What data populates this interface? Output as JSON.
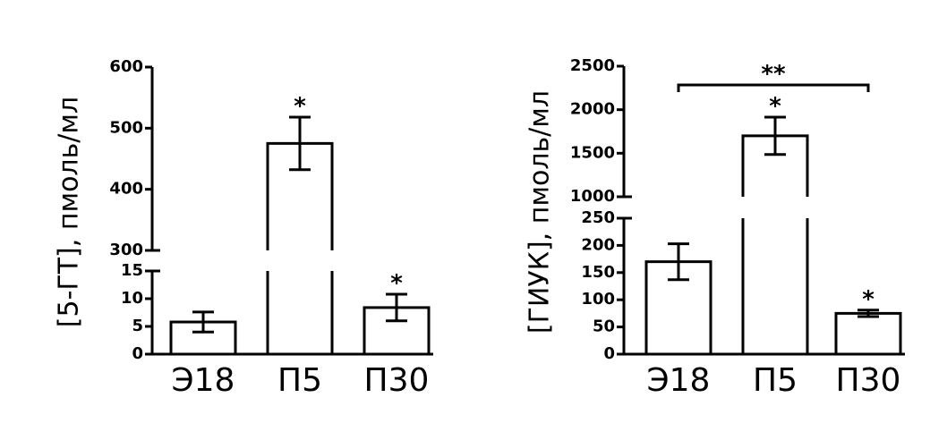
{
  "chart_data": [
    {
      "type": "bar",
      "ylabel": "[5-ГТ], пмоль/мл",
      "categories": [
        "Э18",
        "П5",
        "П30"
      ],
      "values": [
        5.8,
        475,
        8.4
      ],
      "errors": [
        1.8,
        43,
        2.4
      ],
      "significance": [
        "",
        "*",
        "*"
      ],
      "broken_axis": {
        "lower": {
          "ylim": [
            0,
            15
          ],
          "ticks": [
            "0",
            "5",
            "10",
            "15"
          ]
        },
        "upper": {
          "ylim": [
            300,
            600
          ],
          "ticks": [
            "300",
            "400",
            "500",
            "600"
          ]
        }
      },
      "grid": false
    },
    {
      "type": "bar",
      "ylabel": "[ГИУК], пмоль/мл",
      "categories": [
        "Э18",
        "П5",
        "П30"
      ],
      "values": [
        170,
        1700,
        75
      ],
      "errors": [
        33,
        215,
        6
      ],
      "significance": [
        "",
        "*",
        "*"
      ],
      "bracket": {
        "from": "Э18",
        "to": "П30",
        "label": "**"
      },
      "broken_axis": {
        "lower": {
          "ylim": [
            0,
            250
          ],
          "ticks": [
            "0",
            "50",
            "100",
            "150",
            "200",
            "250"
          ]
        },
        "upper": {
          "ylim": [
            1000,
            2500
          ],
          "ticks": [
            "1000",
            "1500",
            "2000",
            "2500"
          ]
        }
      },
      "grid": false
    }
  ]
}
